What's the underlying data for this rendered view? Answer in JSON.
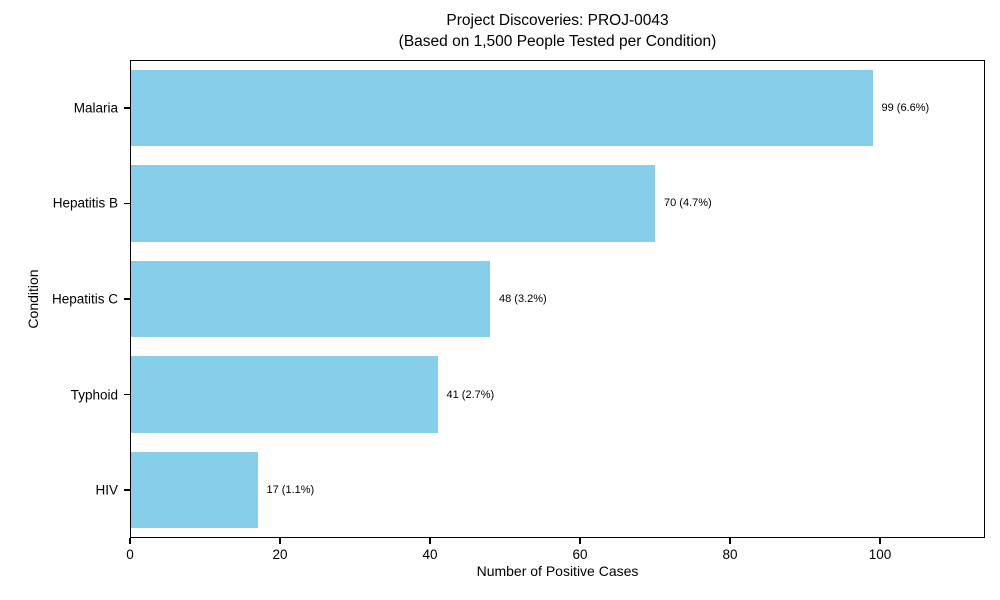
{
  "chart_data": {
    "type": "bar",
    "orientation": "horizontal",
    "title_line1": "Project Discoveries: PROJ-0043",
    "title_line2": "(Based on 1,500 People Tested per Condition)",
    "categories": [
      "Malaria",
      "Hepatitis B",
      "Hepatitis C",
      "Typhoid",
      "HIV"
    ],
    "values": [
      99,
      70,
      48,
      41,
      17
    ],
    "percentages": [
      6.6,
      4.7,
      3.2,
      2.7,
      1.1
    ],
    "bar_labels": [
      "99 (6.6%)",
      "70 (4.7%)",
      "48 (3.2%)",
      "41 (2.7%)",
      "17 (1.1%)"
    ],
    "people_tested_per_condition": 1500,
    "xlabel": "Number of Positive Cases",
    "ylabel": "Condition",
    "xlim": [
      0,
      114
    ],
    "x_ticks": [
      0,
      20,
      40,
      60,
      80,
      100
    ],
    "bar_color": "#87CEEB",
    "spine_color": "#000000",
    "text_color": "#000000",
    "grid": false,
    "legend": false
  }
}
